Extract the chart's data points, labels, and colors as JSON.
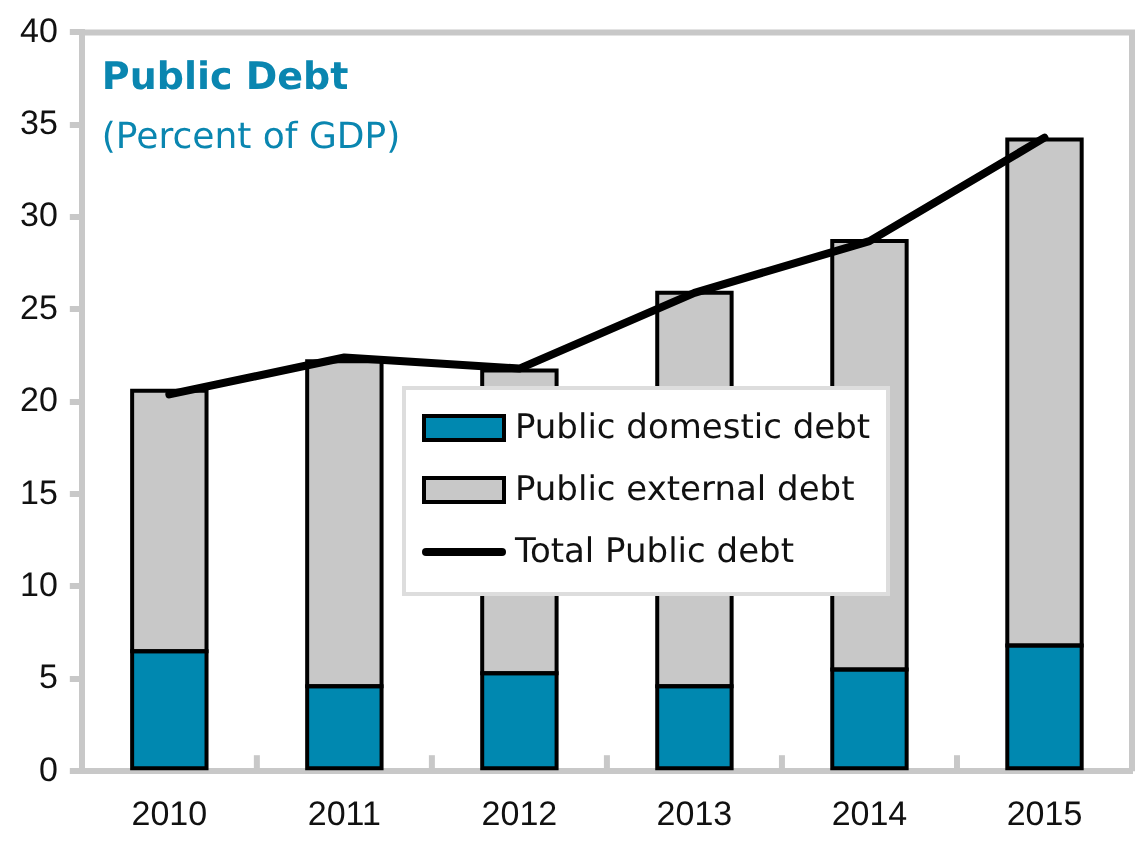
{
  "chart_data": {
    "type": "bar",
    "title": "Public Debt",
    "subtitle": "(Percent of GDP)",
    "categories": [
      "2010",
      "2011",
      "2012",
      "2013",
      "2014",
      "2015"
    ],
    "stacked": true,
    "series": [
      {
        "name": "Public domestic debt",
        "color": "#0088b0",
        "values": [
          6.5,
          4.6,
          5.3,
          4.6,
          5.5,
          6.8
        ]
      },
      {
        "name": "Public external debt",
        "color": "#c8c8c8",
        "values": [
          14.1,
          17.6,
          16.4,
          21.3,
          23.2,
          27.4
        ]
      },
      {
        "name": "Total Public debt",
        "type": "line",
        "color": "#000000",
        "values": [
          20.4,
          22.4,
          21.8,
          25.9,
          28.7,
          34.3
        ]
      }
    ],
    "ylim": [
      0,
      40
    ],
    "yticks": [
      0,
      5,
      10,
      15,
      20,
      25,
      30,
      35,
      40
    ],
    "grid": false,
    "legend": "center",
    "marker": "none"
  }
}
